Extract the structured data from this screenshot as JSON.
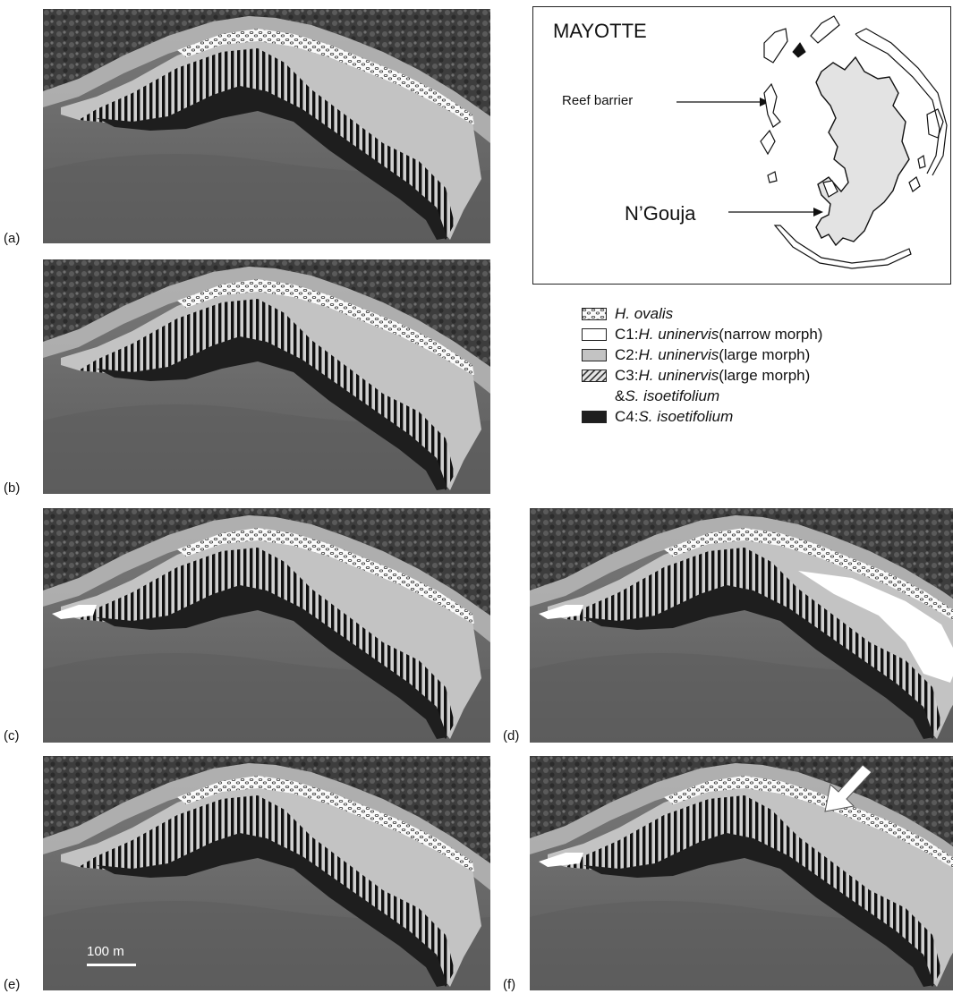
{
  "panels": [
    {
      "label": "(a)"
    },
    {
      "label": "(b)"
    },
    {
      "label": "(c)"
    },
    {
      "label": "(d)"
    },
    {
      "label": "(e)"
    },
    {
      "label": "(f)"
    }
  ],
  "inset": {
    "title": "MAYOTTE",
    "reef_label": "Reef barrier",
    "site_label": "N’Gouja"
  },
  "legend": {
    "items": [
      {
        "prefix": "",
        "species": "H. ovalis",
        "suffix": ""
      },
      {
        "prefix": "C1: ",
        "species": "H. uninervis",
        "suffix": " (narrow morph)"
      },
      {
        "prefix": "C2: ",
        "species": "H. uninervis",
        "suffix": " (large morph)"
      },
      {
        "prefix": "C3: ",
        "species": "H. uninervis",
        "suffix": " (large morph)"
      },
      {
        "prefix": "C4: ",
        "species": "S. isoetifolium",
        "suffix": ""
      }
    ],
    "c3_second_line_prefix": "& ",
    "c3_second_line_species": "S. isoetifolium"
  },
  "scale_bar": {
    "label": "100 m"
  },
  "colors": {
    "forest": "#3f3f3f",
    "beach": "#b9b9b9",
    "water": "#6a6a6a",
    "c2_grey": "#c3c3c3",
    "c4_black": "#1e1e1e",
    "c1_white": "#ffffff"
  }
}
